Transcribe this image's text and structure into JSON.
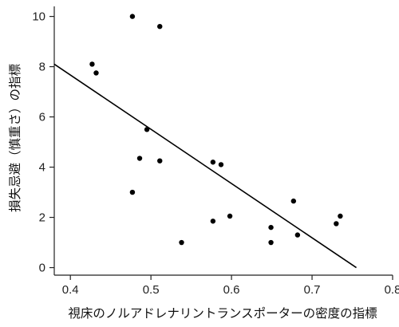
{
  "chart_data": {
    "type": "scatter",
    "xlabel": "視床のノルアドレナリントランスポーターの密度の指標",
    "ylabel": "損失忌避（慎重さ）の指標",
    "xlim": [
      0.38,
      0.8
    ],
    "ylim": [
      -0.3,
      10.4
    ],
    "xticks": [
      0.4,
      0.5,
      0.6,
      0.7,
      0.8
    ],
    "yticks": [
      0,
      2,
      4,
      6,
      8,
      10
    ],
    "xtick_labels": [
      "0.4",
      "0.5",
      "0.6",
      "0.7",
      "0.8"
    ],
    "ytick_labels": [
      "0",
      "2",
      "4",
      "6",
      "8",
      "10"
    ],
    "grid": false,
    "legend": "none",
    "points": [
      {
        "x": 0.427,
        "y": 8.1
      },
      {
        "x": 0.432,
        "y": 7.75
      },
      {
        "x": 0.477,
        "y": 10.0
      },
      {
        "x": 0.511,
        "y": 9.6
      },
      {
        "x": 0.495,
        "y": 5.5
      },
      {
        "x": 0.486,
        "y": 4.35
      },
      {
        "x": 0.511,
        "y": 4.25
      },
      {
        "x": 0.477,
        "y": 3.0
      },
      {
        "x": 0.577,
        "y": 4.2
      },
      {
        "x": 0.587,
        "y": 4.1
      },
      {
        "x": 0.538,
        "y": 1.0
      },
      {
        "x": 0.577,
        "y": 1.85
      },
      {
        "x": 0.598,
        "y": 2.05
      },
      {
        "x": 0.649,
        "y": 1.6
      },
      {
        "x": 0.649,
        "y": 1.0
      },
      {
        "x": 0.677,
        "y": 2.65
      },
      {
        "x": 0.682,
        "y": 1.3
      },
      {
        "x": 0.73,
        "y": 1.75
      },
      {
        "x": 0.735,
        "y": 2.05
      }
    ],
    "fit_line": {
      "x": [
        0.38,
        0.755
      ],
      "y": [
        8.1,
        0.0
      ]
    }
  }
}
